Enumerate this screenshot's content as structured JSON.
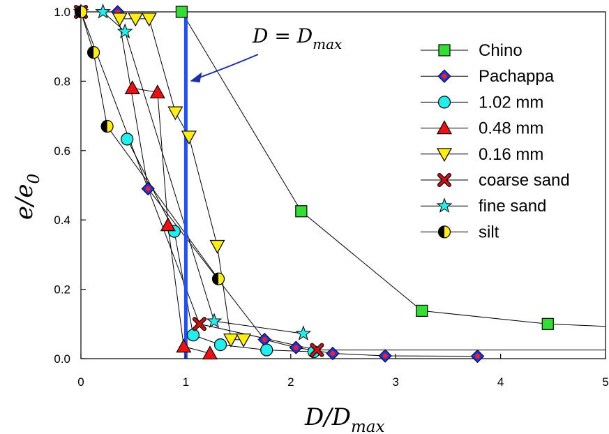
{
  "chart_data": {
    "type": "scatter",
    "title": "",
    "xlim": [
      0,
      5
    ],
    "ylim": [
      0,
      1.0
    ],
    "x_ticks": [
      "0",
      "1",
      "2",
      "3",
      "4",
      "5"
    ],
    "y_ticks": [
      "0.0",
      "0.2",
      "0.4",
      "0.6",
      "0.8",
      "1.0"
    ],
    "xlabel": {
      "main": "D/D",
      "sub": "max"
    },
    "ylabel": {
      "main": "e/e",
      "sub": "0"
    },
    "grid": false,
    "legend_position": "top-right",
    "vertical_line": {
      "x": 1.0,
      "color": "#1f4fff"
    },
    "annotation": {
      "main": "D = D",
      "sub": "max",
      "points_to": [
        1.0,
        0.8
      ]
    },
    "series": [
      {
        "name": "Chino",
        "marker": "square",
        "color": "#33dd33",
        "x": [
          0.96,
          2.1,
          3.25,
          4.45,
          5.0
        ],
        "y": [
          1.0,
          0.425,
          0.138,
          0.1,
          0.093
        ]
      },
      {
        "name": "Pachappa",
        "marker": "diamond",
        "color": "#2233dd",
        "accent": "#ee2222",
        "x": [
          0.35,
          0.64,
          1.75,
          2.05,
          2.4,
          2.9,
          3.78
        ],
        "y": [
          1.0,
          0.49,
          0.055,
          0.032,
          0.015,
          0.008,
          0.007
        ]
      },
      {
        "name": "1.02 mm",
        "marker": "circle",
        "color": "#22eeee",
        "x": [
          0.44,
          0.89,
          1.07,
          1.33,
          1.77,
          2.22
        ],
        "y": [
          0.633,
          0.367,
          0.068,
          0.04,
          0.025,
          0.02
        ]
      },
      {
        "name": "0.48 mm",
        "marker": "triangle-up",
        "color": "#ee1111",
        "x": [
          0.49,
          0.73,
          0.83,
          0.98,
          1.23
        ],
        "y": [
          0.78,
          0.768,
          0.385,
          0.035,
          0.015
        ]
      },
      {
        "name": "0.16 mm",
        "marker": "triangle-down",
        "color": "#ffee11",
        "x": [
          0.37,
          0.52,
          0.65,
          0.9,
          1.03,
          1.3,
          1.43,
          1.55
        ],
        "y": [
          0.98,
          0.98,
          0.98,
          0.71,
          0.64,
          0.325,
          0.055,
          0.055
        ]
      },
      {
        "name": "coarse sand",
        "marker": "x",
        "color": "#cc1111",
        "x": [
          0.0,
          1.13,
          2.25,
          5.0
        ],
        "y": [
          1.0,
          0.1,
          0.025,
          0.025
        ]
      },
      {
        "name": "fine sand",
        "marker": "star",
        "color": "#22eeee",
        "x": [
          0.0,
          0.21,
          0.42,
          1.27,
          2.12
        ],
        "y": [
          1.0,
          1.0,
          0.943,
          0.108,
          0.072
        ]
      },
      {
        "name": "silt",
        "marker": "half-circle",
        "color": "#ffee11",
        "x": [
          0.0,
          0.12,
          0.25,
          1.31
        ],
        "y": [
          1.0,
          0.883,
          0.67,
          0.23
        ]
      }
    ]
  }
}
